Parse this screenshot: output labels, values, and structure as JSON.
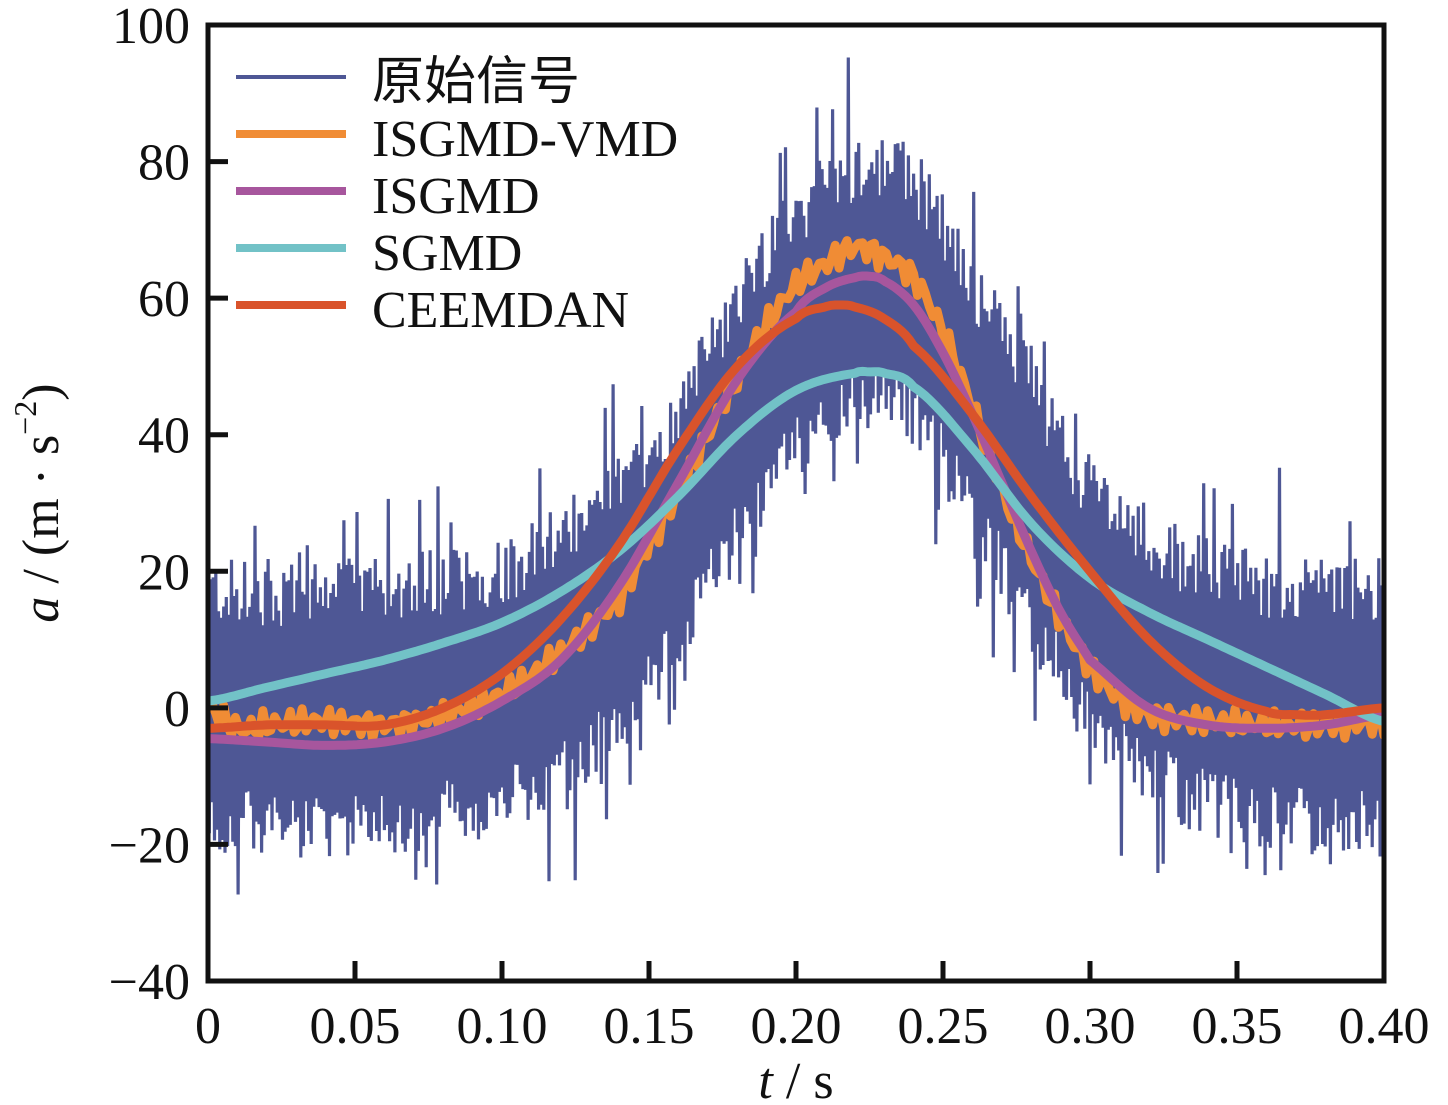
{
  "chart_data": {
    "type": "line",
    "title": "",
    "xlabel": {
      "var": "t",
      "sep": " / ",
      "unit": "s"
    },
    "ylabel": {
      "var": "a",
      "sep": " / (m · s",
      "sup": "−2",
      "close": ")"
    },
    "xlim": [
      0,
      0.4
    ],
    "ylim": [
      -40,
      100
    ],
    "xticks": [
      0,
      0.05,
      0.1,
      0.15,
      0.2,
      0.25,
      0.3,
      0.35,
      0.4
    ],
    "xtick_labels": [
      "0",
      "0.05",
      "0.10",
      "0.15",
      "0.20",
      "0.25",
      "0.30",
      "0.35",
      "0.40"
    ],
    "yticks": [
      -40,
      -20,
      0,
      20,
      40,
      60,
      80,
      100
    ],
    "ytick_labels": [
      "−40",
      "−20",
      "0",
      "20",
      "40",
      "60",
      "80",
      "100"
    ],
    "grid": false,
    "legend_position": "top-left",
    "series": [
      {
        "name": "原始信号",
        "color": "#4E5795",
        "kind": "noisy",
        "noise_amplitude": 22,
        "spike_amplitude": 14,
        "samples": 900,
        "envelope_center": {
          "x": [
            0,
            0.05,
            0.1,
            0.12,
            0.15,
            0.18,
            0.2,
            0.22,
            0.24,
            0.26,
            0.28,
            0.3,
            0.33,
            0.36,
            0.4
          ],
          "y": [
            0,
            0,
            3,
            8,
            20,
            42,
            55,
            62,
            60,
            45,
            30,
            15,
            5,
            1,
            0
          ]
        }
      },
      {
        "name": "ISGMD-VMD",
        "color": "#F08C35",
        "kind": "wiggly",
        "x": [
          0,
          0.01,
          0.02,
          0.04,
          0.06,
          0.08,
          0.1,
          0.12,
          0.14,
          0.15,
          0.16,
          0.18,
          0.19,
          0.2,
          0.21,
          0.22,
          0.23,
          0.24,
          0.25,
          0.26,
          0.27,
          0.28,
          0.29,
          0.3,
          0.31,
          0.32,
          0.34,
          0.36,
          0.38,
          0.4
        ],
        "y": [
          0,
          -3,
          -2.5,
          -2,
          -2.5,
          -1,
          2,
          8,
          16,
          24,
          32,
          48,
          56,
          62,
          65,
          67.5,
          66,
          63,
          55,
          44,
          32,
          22,
          13,
          6,
          1.5,
          -1,
          -2,
          -2.5,
          -2.5,
          -2
        ]
      },
      {
        "name": "ISGMD",
        "color": "#A7569D",
        "kind": "smooth",
        "x": [
          0,
          0.02,
          0.04,
          0.06,
          0.08,
          0.1,
          0.12,
          0.14,
          0.16,
          0.18,
          0.2,
          0.21,
          0.22,
          0.225,
          0.23,
          0.24,
          0.25,
          0.26,
          0.27,
          0.28,
          0.29,
          0.3,
          0.32,
          0.34,
          0.36,
          0.38,
          0.4
        ],
        "y": [
          -4.5,
          -5,
          -5.5,
          -5,
          -3,
          1,
          7,
          18,
          33,
          48,
          58,
          61.5,
          63,
          63.2,
          62.5,
          59,
          52,
          43,
          33,
          23,
          14,
          7,
          0,
          -2.5,
          -3,
          -2.5,
          -1
        ]
      },
      {
        "name": "SGMD",
        "color": "#72C2C7",
        "kind": "smooth",
        "x": [
          0,
          0.02,
          0.04,
          0.06,
          0.08,
          0.1,
          0.12,
          0.14,
          0.16,
          0.18,
          0.2,
          0.22,
          0.225,
          0.23,
          0.24,
          0.26,
          0.28,
          0.3,
          0.32,
          0.34,
          0.36,
          0.38,
          0.4
        ],
        "y": [
          1,
          3,
          5,
          7,
          9.5,
          12.5,
          17,
          23,
          31,
          40,
          46.5,
          49,
          49.2,
          49,
          47,
          38,
          27,
          19,
          14,
          10,
          6,
          2,
          -2
        ]
      },
      {
        "name": "CEEMDAN",
        "color": "#D9532B",
        "kind": "smooth",
        "x": [
          0,
          0.02,
          0.04,
          0.06,
          0.08,
          0.1,
          0.12,
          0.14,
          0.16,
          0.18,
          0.2,
          0.21,
          0.215,
          0.22,
          0.23,
          0.24,
          0.26,
          0.28,
          0.3,
          0.32,
          0.34,
          0.36,
          0.37,
          0.38,
          0.4
        ],
        "y": [
          -3,
          -2.5,
          -2.5,
          -2.5,
          0,
          5,
          13,
          24,
          38,
          50,
          57,
          58.7,
          59,
          58.7,
          57,
          53,
          43,
          31,
          20,
          10,
          3,
          -0.5,
          -1,
          -1,
          0
        ]
      }
    ]
  }
}
